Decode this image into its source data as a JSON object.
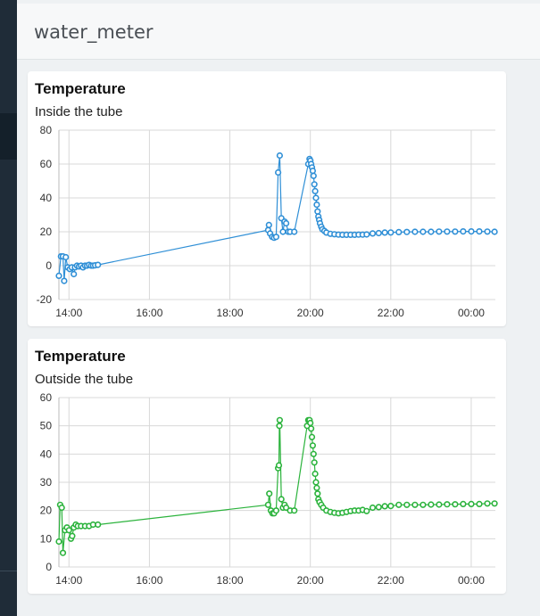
{
  "app": {
    "title": "water_meter"
  },
  "colors": {
    "inside": "#2f8fd6",
    "outside": "#2bb33c",
    "grid": "#d8d8d8"
  },
  "cards": [
    {
      "title": "Temperature",
      "subtitle": "Inside the tube"
    },
    {
      "title": "Temperature",
      "subtitle": "Outside the tube"
    }
  ],
  "chart_data": [
    {
      "type": "line",
      "title": "Temperature",
      "subtitle": "Inside the tube",
      "x_unit": "hours (clock time; 24+ = past midnight)",
      "xticks": [
        {
          "v": 14,
          "label": "14:00"
        },
        {
          "v": 16,
          "label": "16:00"
        },
        {
          "v": 18,
          "label": "18:00"
        },
        {
          "v": 20,
          "label": "20:00"
        },
        {
          "v": 22,
          "label": "22:00"
        },
        {
          "v": 24,
          "label": "00:00"
        }
      ],
      "yticks": [
        -20,
        0,
        20,
        40,
        60,
        80
      ],
      "xlim": [
        13.75,
        24.6
      ],
      "ylim": [
        -20,
        80
      ],
      "grid": true,
      "series": [
        {
          "color": "#2f8fd6",
          "points": [
            [
              13.75,
              -6
            ],
            [
              13.8,
              5.5
            ],
            [
              13.85,
              5.5
            ],
            [
              13.88,
              -9
            ],
            [
              13.92,
              5
            ],
            [
              13.97,
              -1
            ],
            [
              14.02,
              -2
            ],
            [
              14.07,
              -1
            ],
            [
              14.12,
              -5
            ],
            [
              14.15,
              -1
            ],
            [
              14.2,
              0
            ],
            [
              14.25,
              -0.5
            ],
            [
              14.3,
              0
            ],
            [
              14.35,
              -1
            ],
            [
              14.4,
              0
            ],
            [
              14.45,
              0
            ],
            [
              14.5,
              0.5
            ],
            [
              14.55,
              0
            ],
            [
              14.6,
              0
            ],
            [
              14.65,
              0.2
            ],
            [
              14.72,
              0.5
            ],
            [
              18.95,
              21
            ],
            [
              18.97,
              24
            ],
            [
              19.0,
              19
            ],
            [
              19.05,
              17
            ],
            [
              19.1,
              16.5
            ],
            [
              19.15,
              17
            ],
            [
              19.2,
              55
            ],
            [
              19.24,
              65
            ],
            [
              19.28,
              28
            ],
            [
              19.32,
              20
            ],
            [
              19.36,
              26
            ],
            [
              19.4,
              25
            ],
            [
              19.45,
              20
            ],
            [
              19.5,
              20
            ],
            [
              19.6,
              20
            ],
            [
              19.95,
              60
            ],
            [
              19.98,
              63
            ],
            [
              20.0,
              62
            ],
            [
              20.02,
              60
            ],
            [
              20.04,
              58
            ],
            [
              20.06,
              56
            ],
            [
              20.08,
              53
            ],
            [
              20.1,
              48
            ],
            [
              20.12,
              44
            ],
            [
              20.14,
              40
            ],
            [
              20.16,
              36
            ],
            [
              20.18,
              32
            ],
            [
              20.2,
              29
            ],
            [
              20.22,
              27
            ],
            [
              20.24,
              25
            ],
            [
              20.27,
              23
            ],
            [
              20.3,
              21.5
            ],
            [
              20.35,
              20.5
            ],
            [
              20.4,
              19.5
            ],
            [
              20.5,
              18.8
            ],
            [
              20.6,
              18.5
            ],
            [
              20.7,
              18.3
            ],
            [
              20.8,
              18.2
            ],
            [
              20.9,
              18.2
            ],
            [
              21.0,
              18.2
            ],
            [
              21.1,
              18.2
            ],
            [
              21.2,
              18.3
            ],
            [
              21.3,
              18.3
            ],
            [
              21.4,
              18.4
            ],
            [
              21.55,
              19
            ],
            [
              21.7,
              19.2
            ],
            [
              21.85,
              19.5
            ],
            [
              22.0,
              19.6
            ],
            [
              22.2,
              19.8
            ],
            [
              22.4,
              19.9
            ],
            [
              22.6,
              20
            ],
            [
              22.8,
              20
            ],
            [
              23.0,
              20
            ],
            [
              23.2,
              20.1
            ],
            [
              23.4,
              20.1
            ],
            [
              23.6,
              20.1
            ],
            [
              23.8,
              20.2
            ],
            [
              24.0,
              20.2
            ],
            [
              24.2,
              20.2
            ],
            [
              24.4,
              20.1
            ],
            [
              24.58,
              20
            ]
          ]
        }
      ]
    },
    {
      "type": "line",
      "title": "Temperature",
      "subtitle": "Outside the tube",
      "x_unit": "hours (clock time; 24+ = past midnight)",
      "xticks": [
        {
          "v": 14,
          "label": "14:00"
        },
        {
          "v": 16,
          "label": "16:00"
        },
        {
          "v": 18,
          "label": "18:00"
        },
        {
          "v": 20,
          "label": "20:00"
        },
        {
          "v": 22,
          "label": "22:00"
        },
        {
          "v": 24,
          "label": "00:00"
        }
      ],
      "yticks": [
        0,
        10,
        20,
        30,
        40,
        50,
        60
      ],
      "xlim": [
        13.75,
        24.6
      ],
      "ylim": [
        0,
        60
      ],
      "grid": true,
      "series": [
        {
          "color": "#2bb33c",
          "points": [
            [
              13.75,
              9
            ],
            [
              13.78,
              22
            ],
            [
              13.82,
              21
            ],
            [
              13.85,
              5
            ],
            [
              13.9,
              13
            ],
            [
              13.95,
              14
            ],
            [
              14.0,
              13
            ],
            [
              14.05,
              10
            ],
            [
              14.08,
              11
            ],
            [
              14.12,
              14
            ],
            [
              14.17,
              15
            ],
            [
              14.22,
              14.5
            ],
            [
              14.3,
              14.5
            ],
            [
              14.4,
              14.5
            ],
            [
              14.5,
              14.5
            ],
            [
              14.6,
              15
            ],
            [
              14.72,
              15
            ],
            [
              18.95,
              22
            ],
            [
              18.98,
              26
            ],
            [
              19.02,
              20
            ],
            [
              19.06,
              19
            ],
            [
              19.1,
              19
            ],
            [
              19.15,
              20
            ],
            [
              19.2,
              35
            ],
            [
              19.22,
              36
            ],
            [
              19.23,
              50
            ],
            [
              19.24,
              52
            ],
            [
              19.28,
              24
            ],
            [
              19.32,
              21
            ],
            [
              19.36,
              22
            ],
            [
              19.4,
              21
            ],
            [
              19.5,
              20
            ],
            [
              19.6,
              20
            ],
            [
              19.92,
              50
            ],
            [
              19.95,
              52
            ],
            [
              19.98,
              52
            ],
            [
              20.0,
              51
            ],
            [
              20.02,
              49
            ],
            [
              20.04,
              46
            ],
            [
              20.06,
              43
            ],
            [
              20.08,
              40
            ],
            [
              20.1,
              37
            ],
            [
              20.12,
              33
            ],
            [
              20.14,
              30
            ],
            [
              20.16,
              28
            ],
            [
              20.18,
              26
            ],
            [
              20.2,
              24
            ],
            [
              20.23,
              23
            ],
            [
              20.27,
              22
            ],
            [
              20.32,
              21
            ],
            [
              20.4,
              20
            ],
            [
              20.5,
              19.5
            ],
            [
              20.6,
              19.2
            ],
            [
              20.7,
              19
            ],
            [
              20.8,
              19.2
            ],
            [
              20.9,
              19.5
            ],
            [
              21.0,
              19.8
            ],
            [
              21.1,
              20
            ],
            [
              21.2,
              20
            ],
            [
              21.3,
              20.2
            ],
            [
              21.4,
              19.8
            ],
            [
              21.55,
              21
            ],
            [
              21.7,
              21.2
            ],
            [
              21.85,
              21.5
            ],
            [
              22.0,
              21.6
            ],
            [
              22.2,
              22
            ],
            [
              22.4,
              22
            ],
            [
              22.6,
              22
            ],
            [
              22.8,
              22
            ],
            [
              23.0,
              22.1
            ],
            [
              23.2,
              22.1
            ],
            [
              23.4,
              22.2
            ],
            [
              23.6,
              22.2
            ],
            [
              23.8,
              22.3
            ],
            [
              24.0,
              22.3
            ],
            [
              24.2,
              22.3
            ],
            [
              24.4,
              22.5
            ],
            [
              24.58,
              22.5
            ]
          ]
        }
      ]
    }
  ]
}
